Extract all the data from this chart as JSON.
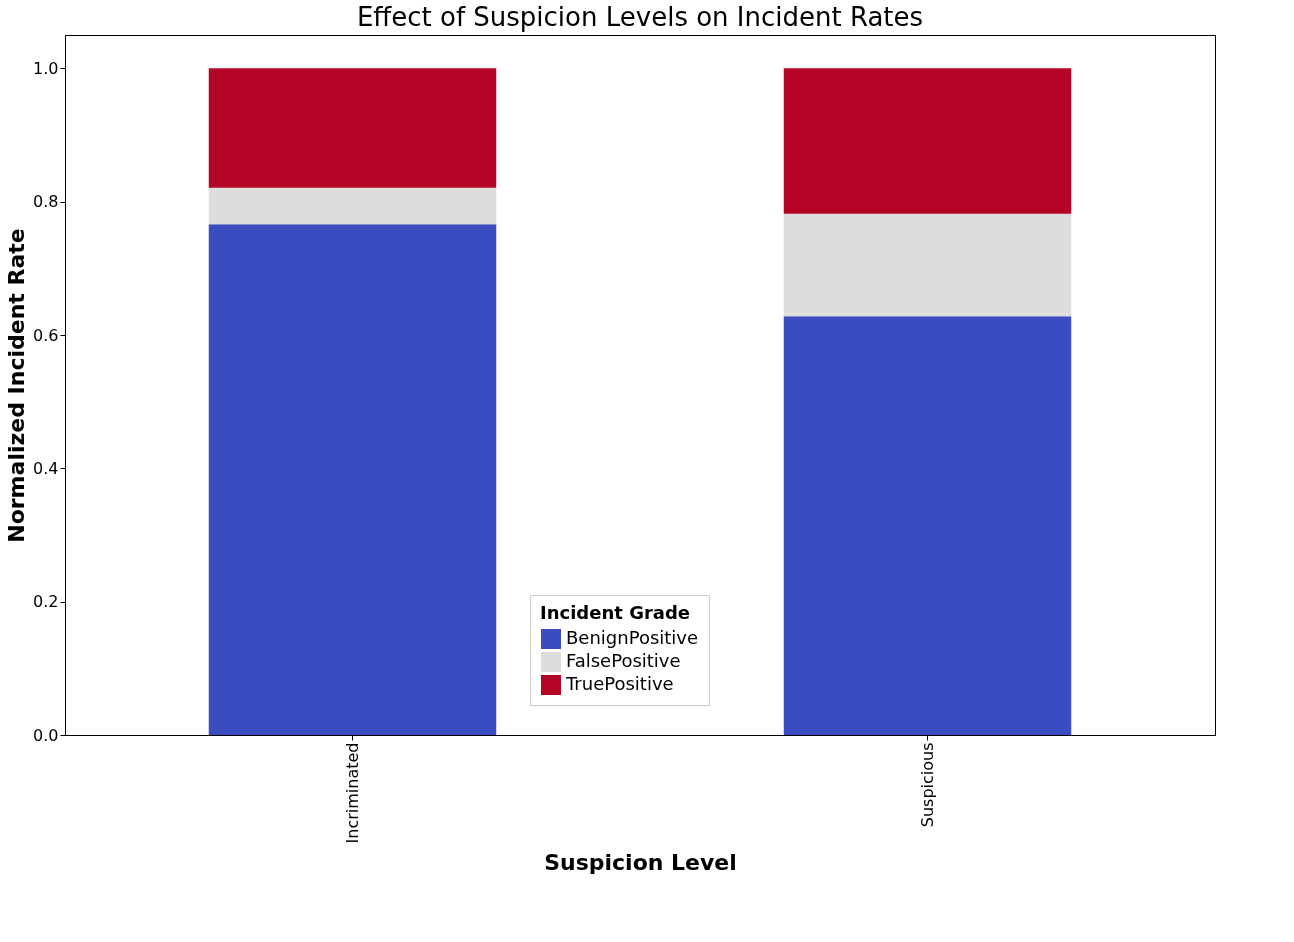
{
  "chart_data": {
    "type": "bar",
    "stacked": true,
    "title": "Effect of Suspicion Levels on Incident Rates",
    "xlabel": "Suspicion Level",
    "ylabel": "Normalized Incident Rate",
    "legend_title": "Incident Grade",
    "legend": "bottom",
    "categories": [
      "Incriminated",
      "Suspicious"
    ],
    "series": [
      {
        "name": "BenignPositive",
        "color": "#3b4cc0",
        "values": [
          0.766,
          0.628
        ]
      },
      {
        "name": "FalsePositive",
        "color": "#dddddd",
        "values": [
          0.055,
          0.154
        ]
      },
      {
        "name": "TruePositive",
        "color": "#b40426",
        "values": [
          0.179,
          0.218
        ]
      }
    ],
    "ylim": [
      0,
      1.05
    ],
    "yticks": [
      {
        "value": 0,
        "label": "0.0"
      },
      {
        "value": 0.2,
        "label": "0.2"
      },
      {
        "value": 0.4,
        "label": "0.4"
      },
      {
        "value": 0.6,
        "label": "0.6"
      },
      {
        "value": 0.8,
        "label": "0.8"
      },
      {
        "value": 1.0,
        "label": "1.0"
      }
    ],
    "grid": false
  }
}
